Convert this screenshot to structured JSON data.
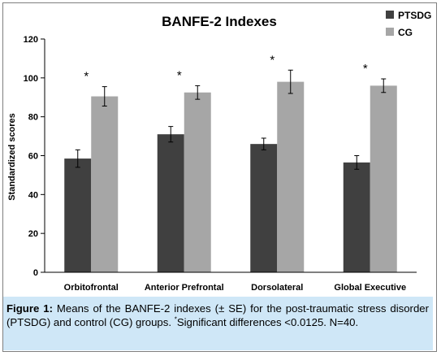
{
  "chart_data": {
    "type": "bar",
    "title": "BANFE-2 Indexes",
    "xlabel": "",
    "ylabel": "Standardized scores",
    "ylim": [
      0,
      120
    ],
    "yticks": [
      0,
      20,
      40,
      60,
      80,
      100,
      120
    ],
    "categories": [
      "Orbitofrontal",
      "Anterior Prefrontal",
      "Dorsolateral",
      "Global Executive"
    ],
    "series": [
      {
        "name": "PTSDG",
        "color": "#404040",
        "values": [
          58.5,
          71,
          66,
          56.5
        ],
        "errors": [
          4.5,
          4,
          3,
          3.5
        ]
      },
      {
        "name": "CG",
        "color": "#a6a6a6",
        "values": [
          90.5,
          92.5,
          98,
          96
        ],
        "errors": [
          5,
          3.5,
          6,
          3.5
        ]
      }
    ],
    "annotations": [
      "*",
      "*",
      "*",
      "*"
    ],
    "legend": "top-right",
    "grid": false
  },
  "caption": {
    "label": "Figure 1:",
    "text": "Means of the BANFE-2 indexes (± SE) for the post-traumatic stress disorder (PTSDG) and control (CG) groups.",
    "sup": "*",
    "note": "Significant differences <0.0125. N=40."
  }
}
